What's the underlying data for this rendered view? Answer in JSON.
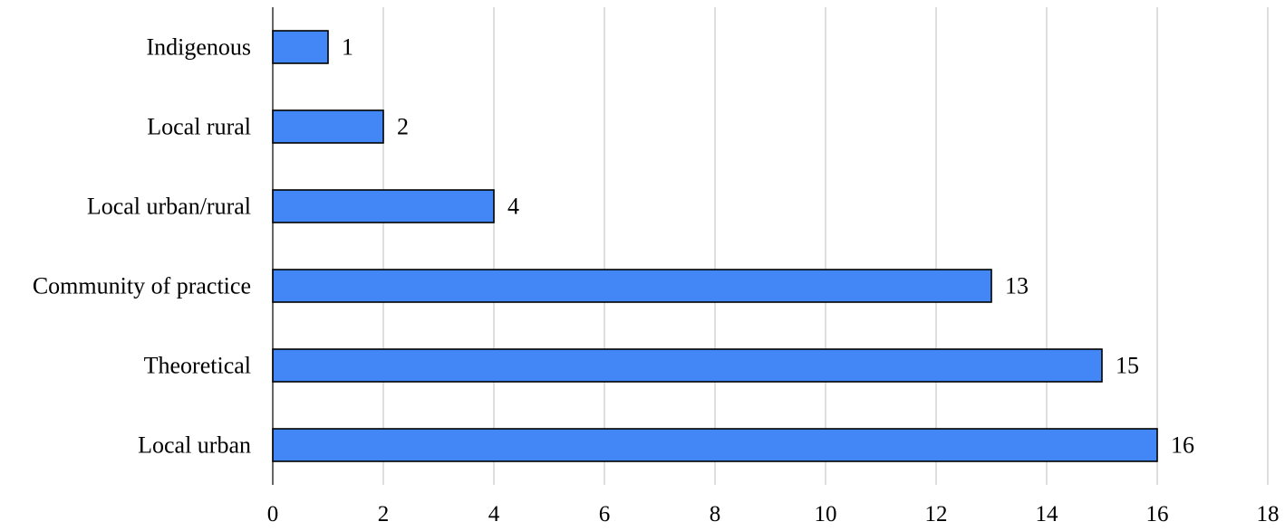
{
  "chart_data": {
    "type": "bar",
    "orientation": "horizontal",
    "title": "",
    "xlabel": "",
    "ylabel": "",
    "categories": [
      "Indigenous",
      "Local rural",
      "Local urban/rural",
      "Community of practice",
      "Theoretical",
      "Local urban"
    ],
    "values": [
      1,
      2,
      4,
      13,
      15,
      16
    ],
    "data_labels": [
      "1",
      "2",
      "4",
      "13",
      "15",
      "16"
    ],
    "xlim": [
      0,
      18
    ],
    "x_ticks": [
      0,
      2,
      4,
      6,
      8,
      10,
      12,
      14,
      16,
      18
    ],
    "x_tick_labels": [
      "0",
      "2",
      "4",
      "6",
      "8",
      "10",
      "12",
      "14",
      "16",
      "18"
    ],
    "grid": "vertical",
    "legend": "none",
    "colors": {
      "bar_fill": "#4287f5",
      "bar_stroke": "#000000",
      "grid": "#c8c8c8",
      "axis": "#000000"
    }
  }
}
